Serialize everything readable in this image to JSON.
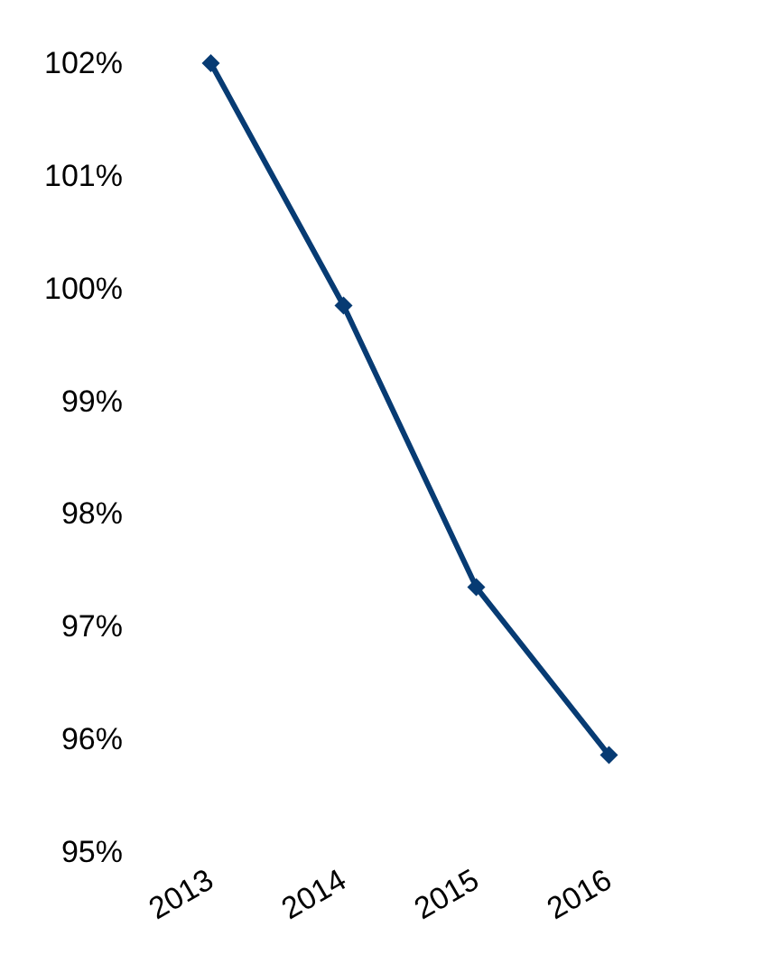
{
  "chart_data": {
    "type": "line",
    "categories": [
      "2013",
      "2014",
      "2015",
      "2016"
    ],
    "series": [
      {
        "color": "#073b73",
        "values": [
          102,
          99.85,
          97.35,
          95.86
        ]
      }
    ],
    "ylim": [
      95,
      102
    ],
    "yticks": [
      {
        "value": 95,
        "label": "95%"
      },
      {
        "value": 96,
        "label": "96%"
      },
      {
        "value": 97,
        "label": "97%"
      },
      {
        "value": 98,
        "label": "98%"
      },
      {
        "value": 99,
        "label": "99%"
      },
      {
        "value": 100,
        "label": "100%"
      },
      {
        "value": 101,
        "label": "101%"
      },
      {
        "value": 102,
        "label": "102%"
      }
    ],
    "marker": "diamond"
  }
}
